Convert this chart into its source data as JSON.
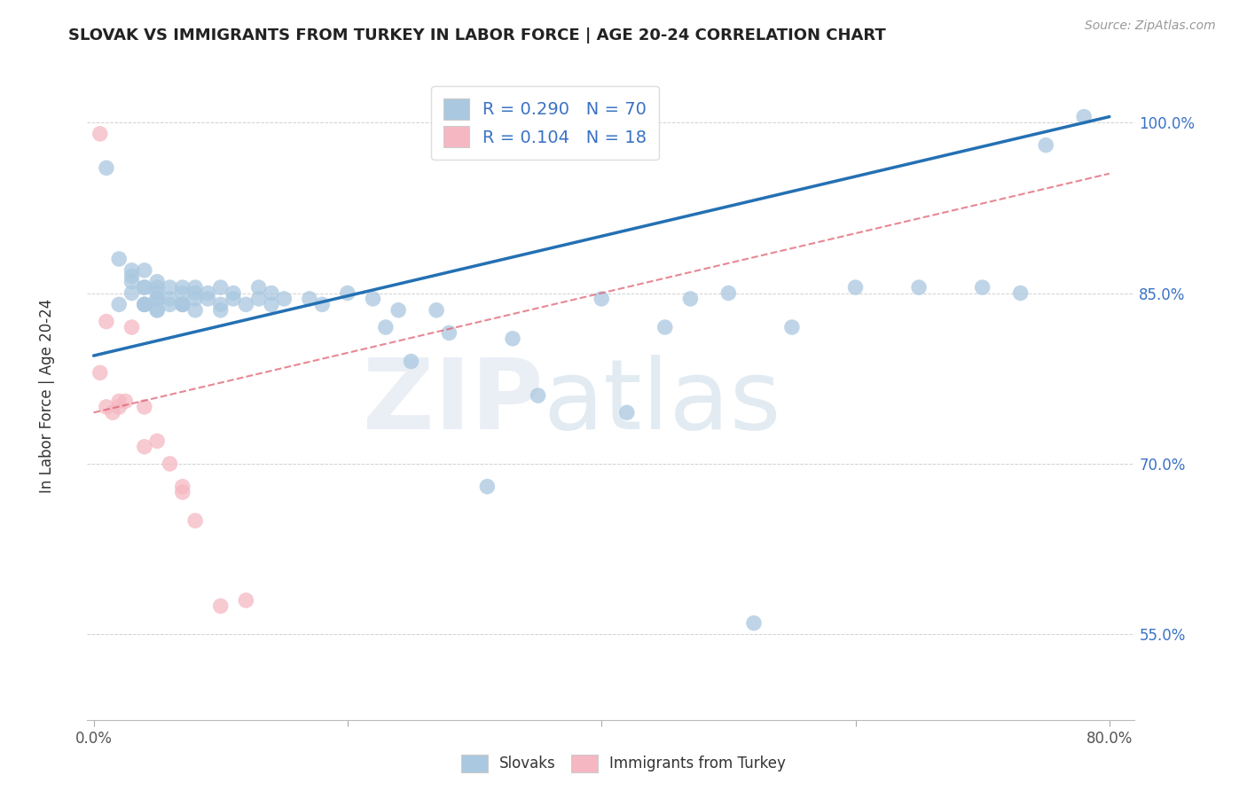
{
  "title": "SLOVAK VS IMMIGRANTS FROM TURKEY IN LABOR FORCE | AGE 20-24 CORRELATION CHART",
  "source": "Source: ZipAtlas.com",
  "ylabel": "In Labor Force | Age 20-24",
  "xlim": [
    -0.005,
    0.82
  ],
  "ylim": [
    0.475,
    1.045
  ],
  "yticks": [
    0.55,
    0.7,
    0.85,
    1.0
  ],
  "ytick_labels": [
    "55.0%",
    "70.0%",
    "85.0%",
    "100.0%"
  ],
  "xticks": [
    0.0,
    0.2,
    0.4,
    0.6,
    0.8
  ],
  "xtick_labels": [
    "0.0%",
    "",
    "",
    "",
    "80.0%"
  ],
  "blue_R": 0.29,
  "blue_N": 70,
  "pink_R": 0.104,
  "pink_N": 18,
  "blue_color": "#aac8e0",
  "pink_color": "#f5b8c2",
  "blue_line_color": "#2470b3",
  "pink_line_color": "#e06070",
  "blue_line_x0": 0.0,
  "blue_line_y0": 0.795,
  "blue_line_x1": 0.8,
  "blue_line_y1": 1.005,
  "pink_line_x0": 0.0,
  "pink_line_y0": 0.745,
  "pink_line_x1": 0.8,
  "pink_line_y1": 0.955,
  "blue_scatter_x": [
    0.01,
    0.02,
    0.02,
    0.03,
    0.03,
    0.03,
    0.03,
    0.04,
    0.04,
    0.04,
    0.04,
    0.04,
    0.04,
    0.05,
    0.05,
    0.05,
    0.05,
    0.05,
    0.05,
    0.05,
    0.06,
    0.06,
    0.06,
    0.07,
    0.07,
    0.07,
    0.07,
    0.07,
    0.08,
    0.08,
    0.08,
    0.08,
    0.09,
    0.09,
    0.1,
    0.1,
    0.1,
    0.11,
    0.11,
    0.12,
    0.13,
    0.13,
    0.14,
    0.14,
    0.15,
    0.17,
    0.18,
    0.2,
    0.22,
    0.23,
    0.24,
    0.25,
    0.27,
    0.28,
    0.31,
    0.33,
    0.35,
    0.4,
    0.42,
    0.45,
    0.47,
    0.5,
    0.52,
    0.55,
    0.6,
    0.65,
    0.7,
    0.73,
    0.75,
    0.78
  ],
  "blue_scatter_y": [
    0.96,
    0.84,
    0.88,
    0.86,
    0.865,
    0.85,
    0.87,
    0.84,
    0.855,
    0.84,
    0.855,
    0.87,
    0.84,
    0.85,
    0.835,
    0.855,
    0.86,
    0.845,
    0.845,
    0.835,
    0.855,
    0.84,
    0.845,
    0.85,
    0.84,
    0.855,
    0.84,
    0.84,
    0.855,
    0.85,
    0.845,
    0.835,
    0.845,
    0.85,
    0.84,
    0.855,
    0.835,
    0.85,
    0.845,
    0.84,
    0.855,
    0.845,
    0.84,
    0.85,
    0.845,
    0.845,
    0.84,
    0.85,
    0.845,
    0.82,
    0.835,
    0.79,
    0.835,
    0.815,
    0.68,
    0.81,
    0.76,
    0.845,
    0.745,
    0.82,
    0.845,
    0.85,
    0.56,
    0.82,
    0.855,
    0.855,
    0.855,
    0.85,
    0.98,
    1.005
  ],
  "pink_scatter_x": [
    0.005,
    0.005,
    0.01,
    0.01,
    0.015,
    0.02,
    0.02,
    0.025,
    0.03,
    0.04,
    0.04,
    0.05,
    0.06,
    0.07,
    0.07,
    0.08,
    0.1,
    0.12
  ],
  "pink_scatter_y": [
    0.99,
    0.78,
    0.825,
    0.75,
    0.745,
    0.755,
    0.75,
    0.755,
    0.82,
    0.75,
    0.715,
    0.72,
    0.7,
    0.675,
    0.68,
    0.65,
    0.575,
    0.58
  ]
}
